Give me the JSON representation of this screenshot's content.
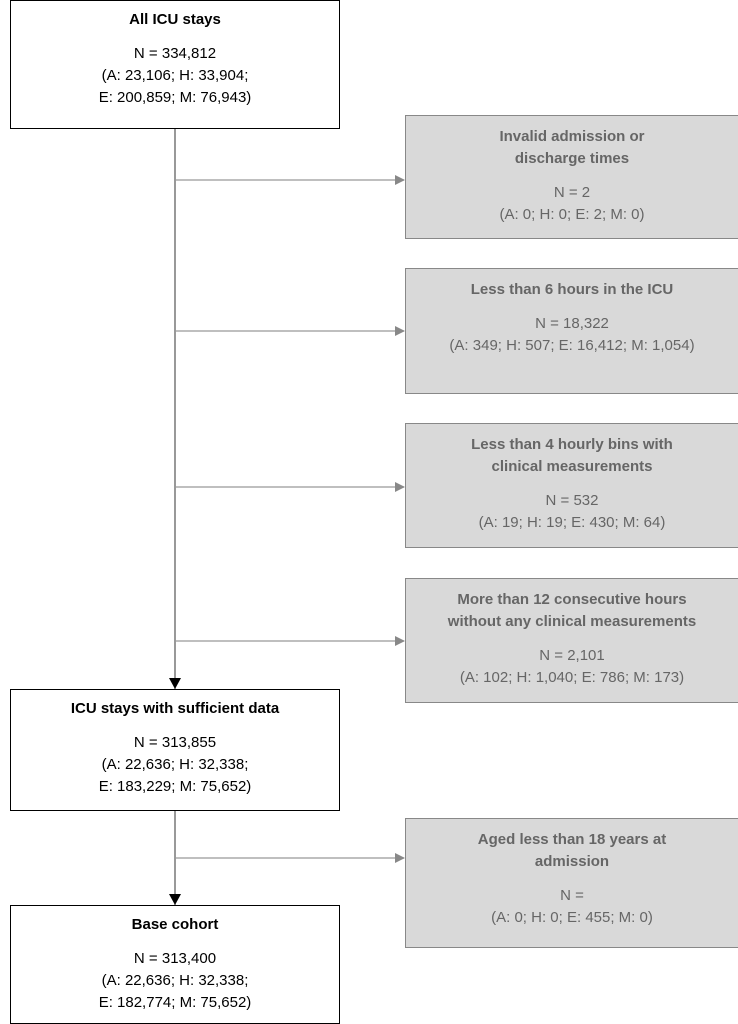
{
  "nodes": [
    {
      "title": [
        "All ICU stays"
      ],
      "lines": [
        "N = 334,812",
        "(A: 23,106; H: 33,904;",
        "E: 200,859; M: 76,943)"
      ]
    },
    {
      "title": [
        "Invalid admission or",
        "discharge times"
      ],
      "lines": [
        "N = 2",
        "(A: 0; H: 0; E: 2; M: 0)"
      ]
    },
    {
      "title": [
        "Less than 6 hours in the ICU"
      ],
      "lines": [
        "N = 18,322",
        "(A: 349; H: 507; E: 16,412; M: 1,054)"
      ]
    },
    {
      "title": [
        "Less than 4 hourly bins with",
        "clinical measurements"
      ],
      "lines": [
        "N = 532",
        "(A: 19; H: 19; E: 430; M: 64)"
      ]
    },
    {
      "title": [
        "More than 12 consecutive hours",
        "without any clinical measurements"
      ],
      "lines": [
        "N = 2,101",
        "(A: 102; H: 1,040; E: 786; M: 173)"
      ]
    },
    {
      "title": [
        "ICU stays with sufficient data"
      ],
      "lines": [
        "N = 313,855",
        "(A: 22,636; H: 32,338;",
        "E: 183,229; M: 75,652)"
      ]
    },
    {
      "title": [
        "Aged less than 18 years at",
        "admission"
      ],
      "lines": [
        "N =",
        "(A: 0; H: 0; E: 455; M: 0)"
      ]
    },
    {
      "title": [
        "Base cohort"
      ],
      "lines": [
        "N = 313,400",
        "(A: 22,636; H: 32,338;",
        "E: 182,774; M: 75,652)"
      ]
    }
  ]
}
